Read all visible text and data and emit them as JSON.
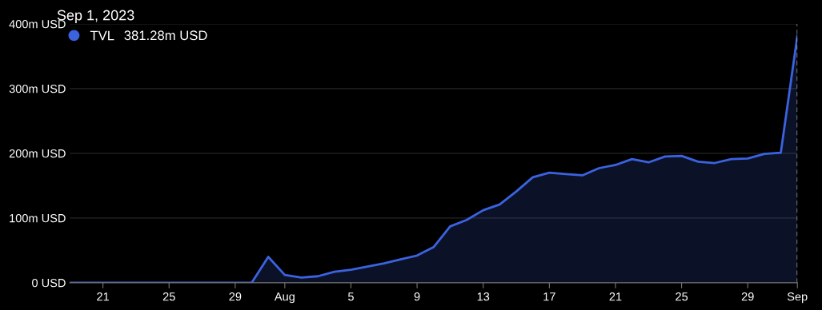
{
  "chart_data": {
    "type": "area",
    "title": "Sep 1, 2023",
    "annotations": [
      "381.28m USD"
    ],
    "x": [
      "2023-07-19",
      "2023-07-20",
      "2023-07-21",
      "2023-07-22",
      "2023-07-23",
      "2023-07-24",
      "2023-07-25",
      "2023-07-26",
      "2023-07-27",
      "2023-07-28",
      "2023-07-29",
      "2023-07-30",
      "2023-07-31",
      "2023-08-01",
      "2023-08-02",
      "2023-08-03",
      "2023-08-04",
      "2023-08-05",
      "2023-08-06",
      "2023-08-07",
      "2023-08-08",
      "2023-08-09",
      "2023-08-10",
      "2023-08-11",
      "2023-08-12",
      "2023-08-13",
      "2023-08-14",
      "2023-08-15",
      "2023-08-16",
      "2023-08-17",
      "2023-08-18",
      "2023-08-19",
      "2023-08-20",
      "2023-08-21",
      "2023-08-22",
      "2023-08-23",
      "2023-08-24",
      "2023-08-25",
      "2023-08-26",
      "2023-08-27",
      "2023-08-28",
      "2023-08-29",
      "2023-08-30",
      "2023-08-31",
      "2023-09-01"
    ],
    "series": [
      {
        "name": "TVL",
        "color": "#3b63e0",
        "values": [
          0,
          0,
          0,
          0,
          0,
          0,
          0,
          0,
          0,
          0,
          0,
          0,
          40,
          12,
          8,
          10,
          17,
          20,
          25,
          30,
          36,
          42,
          55,
          87,
          97,
          112,
          121,
          141,
          163,
          170,
          168,
          166,
          177,
          182,
          191,
          186,
          195,
          196,
          187,
          185,
          191,
          192,
          199,
          201,
          381.28
        ]
      }
    ],
    "xlim": [
      "2023-07-19",
      "2023-09-01"
    ],
    "xticks": [
      {
        "value": "2023-07-21",
        "label": "21"
      },
      {
        "value": "2023-07-25",
        "label": "25"
      },
      {
        "value": "2023-07-29",
        "label": "29"
      },
      {
        "value": "2023-08-01",
        "label": "Aug"
      },
      {
        "value": "2023-08-05",
        "label": "5"
      },
      {
        "value": "2023-08-09",
        "label": "9"
      },
      {
        "value": "2023-08-13",
        "label": "13"
      },
      {
        "value": "2023-08-17",
        "label": "17"
      },
      {
        "value": "2023-08-21",
        "label": "21"
      },
      {
        "value": "2023-08-25",
        "label": "25"
      },
      {
        "value": "2023-08-29",
        "label": "29"
      },
      {
        "value": "2023-09-01",
        "label": "Sep"
      }
    ],
    "ylim": [
      0,
      400
    ],
    "yticks": [
      {
        "value": 0,
        "label": "0 USD"
      },
      {
        "value": 100,
        "label": "100m USD"
      },
      {
        "value": 200,
        "label": "200m USD"
      },
      {
        "value": 300,
        "label": "300m USD"
      },
      {
        "value": 400,
        "label": "400m USD"
      }
    ],
    "ref_lines": [
      {
        "axis": "x",
        "value": "2023-09-01",
        "color": "#aaaaaa",
        "line_style": "dashed"
      }
    ],
    "grid": "y",
    "legend": "top left"
  }
}
